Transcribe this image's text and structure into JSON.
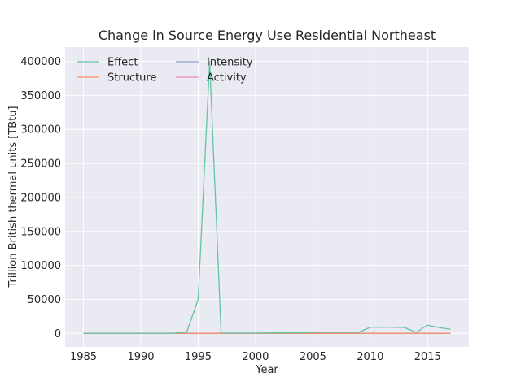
{
  "chart_data": {
    "type": "line",
    "title": "Change in Source Energy Use Residential Northeast",
    "xlabel": "Year",
    "ylabel": "Trillion British thermal units [TBtu]",
    "xlim": [
      1983.4,
      2018.6
    ],
    "ylim": [
      -20000,
      421000
    ],
    "grid": true,
    "legend_position": "top-left",
    "x_ticks": [
      "1985",
      "1990",
      "1995",
      "2000",
      "2005",
      "2010",
      "2015"
    ],
    "y_ticks": [
      "0",
      "50000",
      "100000",
      "150000",
      "200000",
      "250000",
      "300000",
      "350000",
      "400000"
    ],
    "x": [
      1985,
      1986,
      1987,
      1988,
      1989,
      1990,
      1991,
      1992,
      1993,
      1994,
      1995,
      1996,
      1997,
      1998,
      1999,
      2000,
      2001,
      2002,
      2003,
      2004,
      2005,
      2006,
      2007,
      2008,
      2009,
      2010,
      2011,
      2012,
      2013,
      2014,
      2015,
      2016,
      2017
    ],
    "series": [
      {
        "name": "Effect",
        "color": "#66c2a5",
        "values": [
          0,
          0,
          0,
          0,
          0,
          0,
          0,
          0,
          500,
          2000,
          50000,
          400000,
          500,
          500,
          500,
          500,
          600,
          700,
          800,
          1000,
          1500,
          1500,
          1500,
          1500,
          1500,
          9000,
          9200,
          9000,
          8500,
          1500,
          12000,
          8500,
          6000
        ]
      },
      {
        "name": "Structure",
        "color": "#fc8d62",
        "values": [
          0,
          0,
          0,
          0,
          0,
          0,
          0,
          0,
          0,
          0,
          0,
          0,
          0,
          0,
          0,
          0,
          0,
          0,
          0,
          0,
          0,
          0,
          0,
          0,
          0,
          0,
          0,
          0,
          0,
          0,
          0,
          0,
          0
        ]
      },
      {
        "name": "Intensity",
        "color": "#8da0cb",
        "values": [
          0,
          0,
          0,
          0,
          0,
          0,
          0,
          0,
          0,
          0,
          0,
          0,
          0,
          0,
          0,
          0,
          0,
          0,
          0,
          0,
          0,
          0,
          0,
          0,
          0,
          0,
          0,
          0,
          0,
          0,
          0,
          0,
          0
        ]
      },
      {
        "name": "Activity",
        "color": "#e78ac3",
        "values": [
          0,
          0,
          0,
          0,
          0,
          0,
          0,
          0,
          0,
          0,
          0,
          0,
          0,
          0,
          0,
          0,
          0,
          0,
          0,
          0,
          0,
          0,
          0,
          0,
          0,
          0,
          0,
          0,
          0,
          0,
          0,
          0,
          0
        ]
      }
    ]
  }
}
